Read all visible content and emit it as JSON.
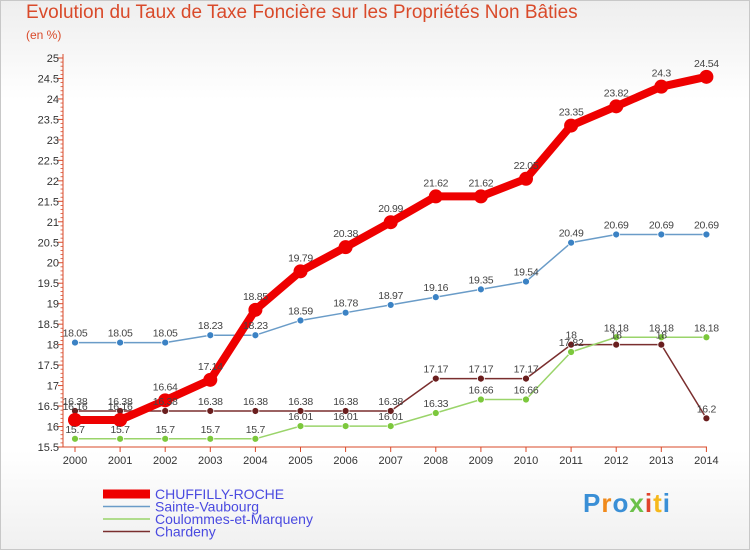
{
  "title": "Evolution du Taux de Taxe Foncière sur les Propriétés Non Bâties",
  "subtitle": "(en %)",
  "logo": {
    "text": "Proxiti",
    "colors": [
      "#3a8fd6",
      "#f08a1c",
      "#3a8fd6",
      "#6cc04a",
      "#e0432c",
      "#f6b81c",
      "#3a8fd6"
    ]
  },
  "chart_data": {
    "type": "line",
    "title": "Evolution du Taux de Taxe Foncière sur les Propriétés Non Bâties",
    "ylabel": "(en %)",
    "xlabel": "",
    "ylim": [
      15.5,
      25
    ],
    "ytick_step": 0.5,
    "grid": false,
    "legend_position": "bottom-left",
    "x": [
      "2000",
      "2001",
      "2002",
      "2003",
      "2004",
      "2005",
      "2006",
      "2007",
      "2008",
      "2009",
      "2010",
      "2011",
      "2012",
      "2013",
      "2014"
    ],
    "series": [
      {
        "name": "CHUFFILLY-ROCHE",
        "color": "#ee0000",
        "width": 8,
        "marker_color": "#ee0000",
        "marker_radius": 7,
        "values": [
          16.16,
          16.16,
          16.64,
          17.14,
          18.85,
          19.79,
          20.38,
          20.99,
          21.62,
          21.62,
          22.05,
          23.35,
          23.82,
          24.3,
          24.54
        ]
      },
      {
        "name": "Sainte-Vaubourg",
        "color": "#6a9cc8",
        "width": 1.5,
        "marker_color": "#3b82c4",
        "marker_radius": 3.5,
        "values": [
          18.05,
          18.05,
          18.05,
          18.23,
          18.23,
          18.59,
          18.78,
          18.97,
          19.16,
          19.35,
          19.54,
          20.49,
          20.69,
          20.69,
          20.69
        ]
      },
      {
        "name": "Coulommes-et-Marqueny",
        "color": "#9ad46a",
        "width": 1.5,
        "marker_color": "#7cc83c",
        "marker_radius": 3.5,
        "values": [
          15.7,
          15.7,
          15.7,
          15.7,
          15.7,
          16.01,
          16.01,
          16.01,
          16.33,
          16.66,
          16.66,
          17.82,
          18.18,
          18.18,
          18.18
        ]
      },
      {
        "name": "Chardeny",
        "color": "#7a2e2e",
        "width": 1.5,
        "marker_color": "#6a1e1e",
        "marker_radius": 3.5,
        "values": [
          16.38,
          16.38,
          16.38,
          16.38,
          16.38,
          16.38,
          16.38,
          16.38,
          17.17,
          17.17,
          17.17,
          18,
          18,
          18,
          16.2
        ]
      }
    ],
    "point_labels": [
      [
        "16.16",
        "16.16",
        "16.64",
        "17.14",
        "18.85",
        "19.79",
        "20.38",
        "20.99",
        "21.62",
        "21.62",
        "22.05",
        "23.35",
        "23.82",
        "24.3",
        "24.54"
      ],
      [
        "18.05",
        "18.05",
        "18.05",
        "18.23",
        "18.23",
        "18.59",
        "18.78",
        "18.97",
        "19.16",
        "19.35",
        "19.54",
        "20.49",
        "20.69",
        "20.69",
        "20.69"
      ],
      [
        "15.7",
        "15.7",
        "15.7",
        "15.7",
        "15.7",
        "16.01",
        "16.01",
        "16.01",
        "16.33",
        "16.66",
        "16.66",
        "17.82",
        "18.18",
        "18.18",
        "18.18"
      ],
      [
        "16.38",
        "16.38",
        "16.38",
        "16.38",
        "16.38",
        "16.38",
        "16.38",
        "16.38",
        "17.17",
        "17.17",
        "17.17",
        "18",
        "18",
        "18",
        "16.2"
      ]
    ],
    "ytick_labels": [
      "15.5",
      "16",
      "16.5",
      "17",
      "17.5",
      "18",
      "18.5",
      "19",
      "19.5",
      "20",
      "20.5",
      "21",
      "21.5",
      "22",
      "22.5",
      "23",
      "23.5",
      "24",
      "24.5",
      "25"
    ],
    "colors": {
      "axis": "#d94a2a",
      "tick_label": "#333333",
      "legend_text": "#4a4ae0",
      "point_label": "#444444"
    }
  }
}
